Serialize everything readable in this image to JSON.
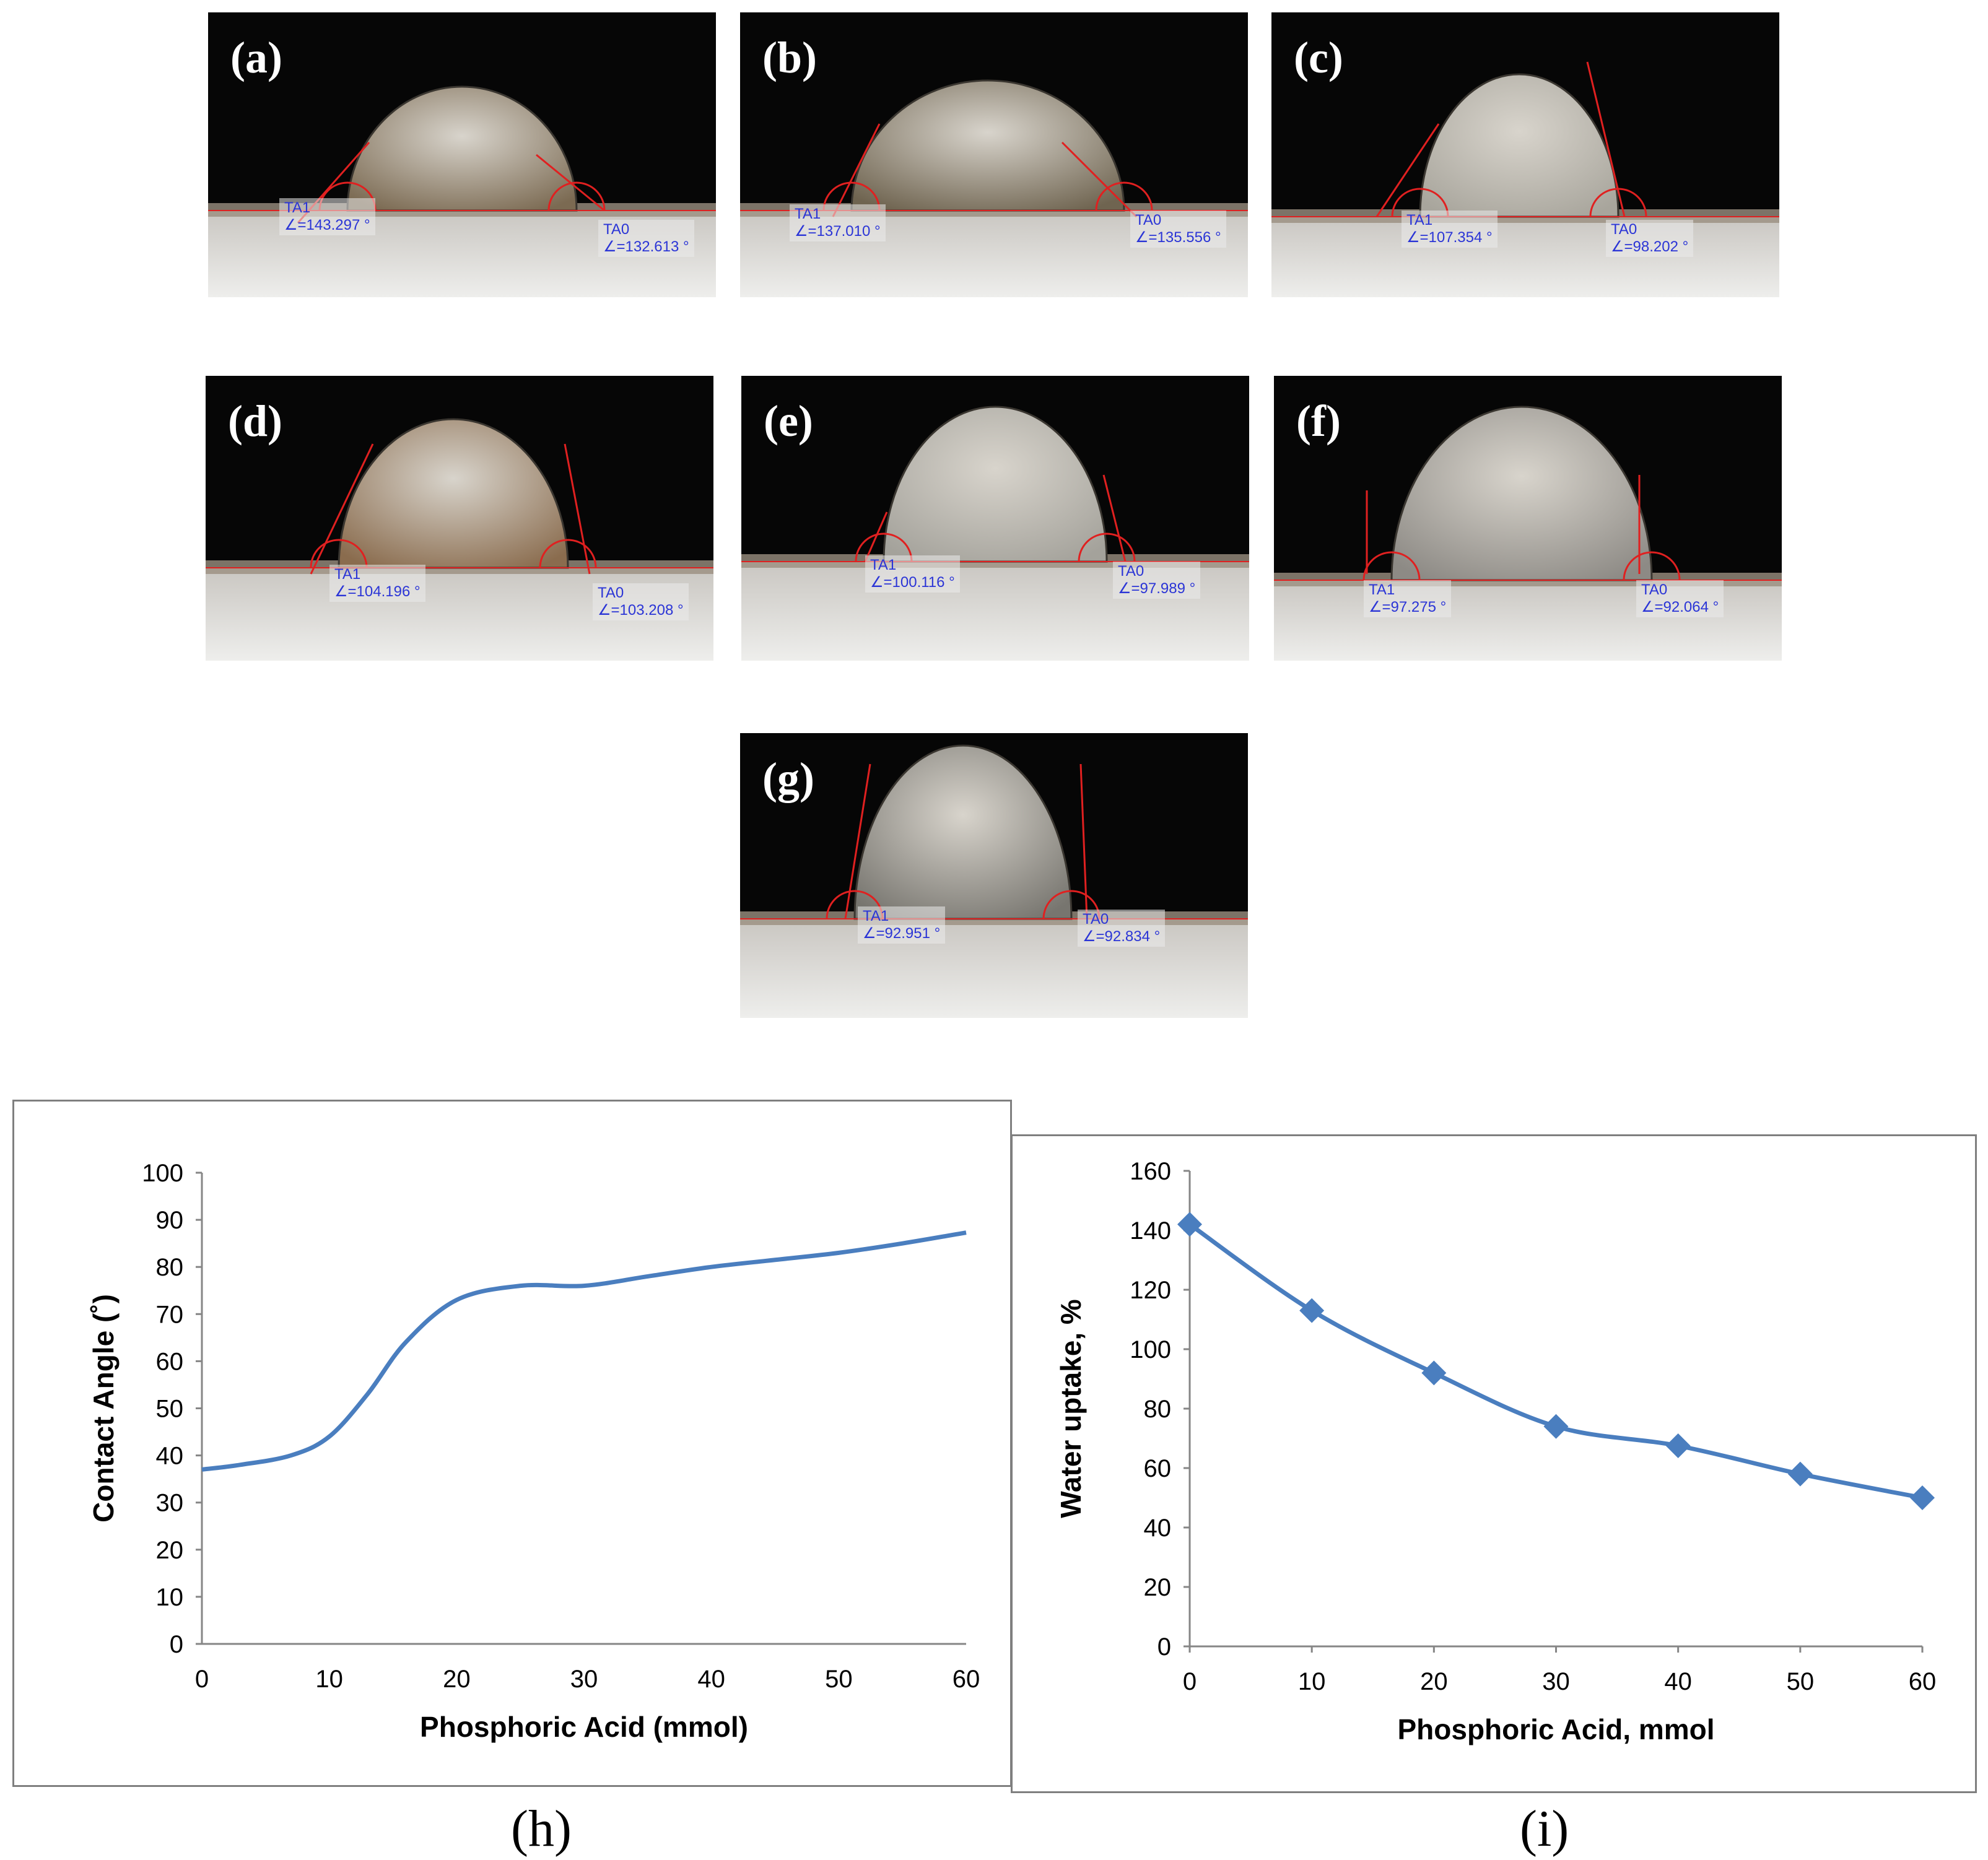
{
  "photos": [
    {
      "label": "(a)",
      "ta1_name": "TA1",
      "ta1_value": "∠=143.297 °",
      "ta0_name": "TA0",
      "ta0_value": "∠=132.613 °",
      "tint": "#7b6a52"
    },
    {
      "label": "(b)",
      "ta1_name": "TA1",
      "ta1_value": "∠=137.010 °",
      "ta0_name": "TA0",
      "ta0_value": "∠=135.556 °",
      "tint": "#6f6450"
    },
    {
      "label": "(c)",
      "ta1_name": "TA1",
      "ta1_value": "∠=107.354 °",
      "ta0_name": "TA0",
      "ta0_value": "∠=98.202 °",
      "tint": "#a8a59c"
    },
    {
      "label": "(d)",
      "ta1_name": "TA1",
      "ta1_value": "∠=104.196 °",
      "ta0_name": "TA0",
      "ta0_value": "∠=103.208 °",
      "tint": "#8a6c4e"
    },
    {
      "label": "(e)",
      "ta1_name": "TA1",
      "ta1_value": "∠=100.116 °",
      "ta0_name": "TA0",
      "ta0_value": "∠=97.989 °",
      "tint": "#a4a29b"
    },
    {
      "label": "(f)",
      "ta1_name": "TA1",
      "ta1_value": "∠=97.275 °",
      "ta0_name": "TA0",
      "ta0_value": "∠=92.064 °",
      "tint": "#8d8a85"
    },
    {
      "label": "(g)",
      "ta1_name": "TA1",
      "ta1_value": "∠=92.951 °",
      "ta0_name": "TA0",
      "ta0_value": "∠=92.834 °",
      "tint": "#77756f"
    }
  ],
  "chart_data": [
    {
      "type": "line",
      "caption": "(h)",
      "title": "",
      "xlabel": "Phosphoric Acid (mmol)",
      "ylabel": "Contact Angle (˚)",
      "x": [
        0,
        10,
        20,
        30,
        40,
        50,
        60
      ],
      "x_ticks": [
        "0",
        "10",
        "20",
        "30",
        "40",
        "50",
        "60"
      ],
      "y_ticks": [
        "0",
        "10",
        "20",
        "30",
        "40",
        "50",
        "60",
        "70",
        "80",
        "90",
        "100"
      ],
      "series": [
        {
          "name": "Contact Angle",
          "x": [
            0,
            3,
            7,
            10,
            13,
            16,
            20,
            25,
            30,
            35,
            40,
            45,
            50,
            55,
            60
          ],
          "values": [
            37,
            38,
            40,
            44,
            53,
            64,
            73,
            76,
            76,
            78,
            80,
            81.5,
            83,
            85,
            87.3
          ],
          "markers": false
        }
      ],
      "xlim": [
        0,
        60
      ],
      "ylim": [
        0,
        100
      ],
      "color": "#4a7ebf"
    },
    {
      "type": "line",
      "caption": "(i)",
      "title": "",
      "xlabel": "Phosphoric  Acid, mmol",
      "ylabel": "Water uptake, %",
      "x": [
        0,
        10,
        20,
        30,
        40,
        50,
        60
      ],
      "x_ticks": [
        "0",
        "10",
        "20",
        "30",
        "40",
        "50",
        "60"
      ],
      "y_ticks": [
        "0",
        "20",
        "40",
        "60",
        "80",
        "100",
        "120",
        "140",
        "160"
      ],
      "series": [
        {
          "name": "Water uptake",
          "x": [
            0,
            10,
            20,
            30,
            40,
            50,
            60
          ],
          "values": [
            142,
            113,
            92,
            74,
            67.5,
            58,
            50
          ],
          "markers": true
        }
      ],
      "xlim": [
        0,
        60
      ],
      "ylim": [
        0,
        160
      ],
      "color": "#4a7ebf"
    }
  ]
}
